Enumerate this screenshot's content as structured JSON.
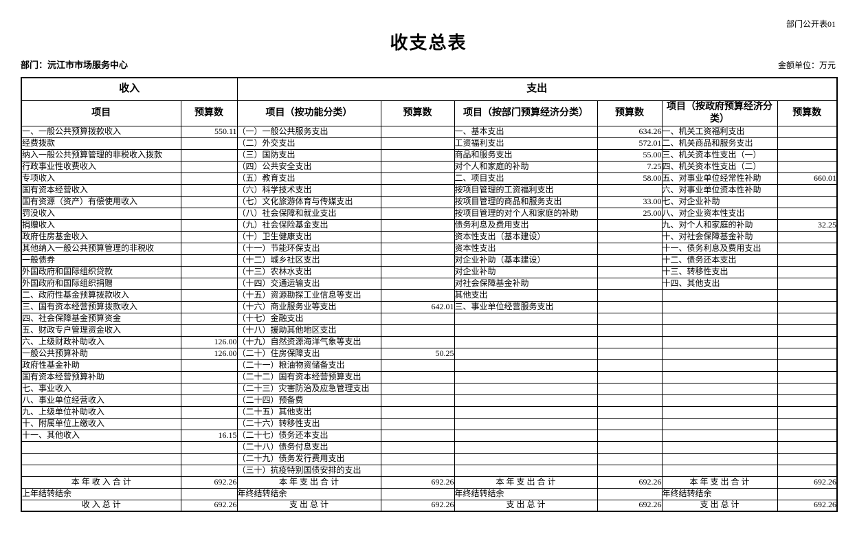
{
  "page": {
    "corner_label": "部门公开表01",
    "title": "收支总表",
    "department_label": "部门：沅江市市场服务中心",
    "unit_label": "金额单位：万元"
  },
  "table": {
    "income_header": "收入",
    "expenditure_header": "支出",
    "column_headers": [
      "项目",
      "预算数",
      "项目（按功能分类）",
      "预算数",
      "项目（按部门预算经济分类）",
      "预算数",
      "项目（按政府预算经济分类）",
      "预算数"
    ],
    "rows": [
      [
        [
          "一、一般公共预算拨款收入",
          0,
          "550.11"
        ],
        [
          "（一）一般公共服务支出",
          0,
          ""
        ],
        [
          "一、基本支出",
          0,
          "634.26"
        ],
        [
          "一、机关工资福利支出",
          0,
          ""
        ]
      ],
      [
        [
          "经费拨款",
          3,
          ""
        ],
        [
          "（二）外交支出",
          0,
          ""
        ],
        [
          "工资福利支出",
          1,
          "572.01"
        ],
        [
          "二、机关商品和服务支出",
          0,
          ""
        ]
      ],
      [
        [
          "纳入一般公共预算管理的非税收入拨款",
          2,
          ""
        ],
        [
          "（三）国防支出",
          0,
          ""
        ],
        [
          "商品和服务支出",
          1,
          "55.00"
        ],
        [
          "三、机关资本性支出（一）",
          0,
          ""
        ]
      ],
      [
        [
          "行政事业性收费收入",
          4,
          ""
        ],
        [
          "（四）公共安全支出",
          0,
          ""
        ],
        [
          "对个人和家庭的补助",
          1,
          "7.25"
        ],
        [
          "四、机关资本性支出（二）",
          0,
          ""
        ]
      ],
      [
        [
          "专项收入",
          4,
          ""
        ],
        [
          "（五）教育支出",
          0,
          ""
        ],
        [
          "二、项目支出",
          0,
          "58.00"
        ],
        [
          "五、对事业单位经常性补助",
          0,
          "660.01"
        ]
      ],
      [
        [
          "国有资本经营收入",
          4,
          ""
        ],
        [
          "（六）科学技术支出",
          0,
          ""
        ],
        [
          "按项目管理的工资福利支出",
          1,
          ""
        ],
        [
          "六、对事业单位资本性补助",
          0,
          ""
        ]
      ],
      [
        [
          "国有资源（资产）有偿使用收入",
          4,
          ""
        ],
        [
          "（七）文化旅游体育与传媒支出",
          0,
          ""
        ],
        [
          "按项目管理的商品和服务支出",
          1,
          "33.00"
        ],
        [
          "七、对企业补助",
          0,
          ""
        ]
      ],
      [
        [
          "罚没收入",
          4,
          ""
        ],
        [
          "（八）社会保障和就业支出",
          0,
          ""
        ],
        [
          "按项目管理的对个人和家庭的补助",
          1,
          "25.00"
        ],
        [
          "八、对企业资本性支出",
          0,
          ""
        ]
      ],
      [
        [
          "捐赠收入",
          4,
          ""
        ],
        [
          "（九）社会保险基金支出",
          0,
          ""
        ],
        [
          "债务利息及费用支出",
          1,
          ""
        ],
        [
          "九、对个人和家庭的补助",
          0,
          "32.25"
        ]
      ],
      [
        [
          "政府住房基金收入",
          4,
          ""
        ],
        [
          "（十）卫生健康支出",
          0,
          ""
        ],
        [
          "资本性支出（基本建设）",
          1,
          ""
        ],
        [
          "十、对社会保障基金补助",
          0,
          ""
        ]
      ],
      [
        [
          "其他纳入一般公共预算管理的非税收",
          4,
          ""
        ],
        [
          "（十一）节能环保支出",
          0,
          ""
        ],
        [
          "资本性支出",
          1,
          ""
        ],
        [
          "十一、债务利息及费用支出",
          0,
          ""
        ]
      ],
      [
        [
          "一般债券",
          3,
          ""
        ],
        [
          "（十二）城乡社区支出",
          0,
          ""
        ],
        [
          "对企业补助（基本建设）",
          1,
          ""
        ],
        [
          "十二、债务还本支出",
          0,
          ""
        ]
      ],
      [
        [
          "外国政府和国际组织贷款",
          1,
          ""
        ],
        [
          "（十三）农林水支出",
          0,
          ""
        ],
        [
          "对企业补助",
          1,
          ""
        ],
        [
          "十三、转移性支出",
          0,
          ""
        ]
      ],
      [
        [
          "外国政府和国际组织捐赠",
          1,
          ""
        ],
        [
          "（十四）交通运输支出",
          0,
          ""
        ],
        [
          "对社会保障基金补助",
          1,
          ""
        ],
        [
          "十四、其他支出",
          0,
          ""
        ]
      ],
      [
        [
          "二、政府性基金预算拨款收入",
          0,
          ""
        ],
        [
          "（十五）资源勘探工业信息等支出",
          0,
          ""
        ],
        [
          "其他支出",
          1,
          ""
        ],
        [
          "",
          0,
          ""
        ]
      ],
      [
        [
          "三、国有资本经营预算拨款收入",
          0,
          ""
        ],
        [
          "（十六）商业服务业等支出",
          0,
          "642.01"
        ],
        [
          "三、事业单位经营服务支出",
          0,
          ""
        ],
        [
          "",
          0,
          ""
        ]
      ],
      [
        [
          "四、社会保障基金预算资金",
          0,
          ""
        ],
        [
          "（十七）金融支出",
          0,
          ""
        ],
        [
          "",
          0,
          ""
        ],
        [
          "",
          0,
          ""
        ]
      ],
      [
        [
          "五、财政专户管理资金收入",
          0,
          ""
        ],
        [
          "（十八）援助其他地区支出",
          0,
          ""
        ],
        [
          "",
          0,
          ""
        ],
        [
          "",
          0,
          ""
        ]
      ],
      [
        [
          "六、上级财政补助收入",
          0,
          "126.00"
        ],
        [
          "（十九）自然资源海洋气象等支出",
          0,
          ""
        ],
        [
          "",
          0,
          ""
        ],
        [
          "",
          0,
          ""
        ]
      ],
      [
        [
          "一般公共预算补助",
          3,
          "126.00"
        ],
        [
          "（二十）住房保障支出",
          0,
          "50.25"
        ],
        [
          "",
          0,
          ""
        ],
        [
          "",
          0,
          ""
        ]
      ],
      [
        [
          "政府性基金补助",
          3,
          ""
        ],
        [
          "（二十一）粮油物资储备支出",
          0,
          ""
        ],
        [
          "",
          0,
          ""
        ],
        [
          "",
          0,
          ""
        ]
      ],
      [
        [
          "国有资本经营预算补助",
          3,
          ""
        ],
        [
          "（二十二）国有资本经营预算支出",
          0,
          ""
        ],
        [
          "",
          0,
          ""
        ],
        [
          "",
          0,
          ""
        ]
      ],
      [
        [
          "七、事业收入",
          0,
          ""
        ],
        [
          "（二十三）灾害防治及应急管理支出",
          0,
          ""
        ],
        [
          "",
          0,
          ""
        ],
        [
          "",
          0,
          ""
        ]
      ],
      [
        [
          "八、事业单位经营收入",
          0,
          ""
        ],
        [
          "（二十四）预备费",
          0,
          ""
        ],
        [
          "",
          0,
          ""
        ],
        [
          "",
          0,
          ""
        ]
      ],
      [
        [
          "九、上级单位补助收入",
          0,
          ""
        ],
        [
          "（二十五）其他支出",
          0,
          ""
        ],
        [
          "",
          0,
          ""
        ],
        [
          "",
          0,
          ""
        ]
      ],
      [
        [
          "十、附属单位上缴收入",
          0,
          ""
        ],
        [
          "（二十六）转移性支出",
          0,
          ""
        ],
        [
          "",
          0,
          ""
        ],
        [
          "",
          0,
          ""
        ]
      ],
      [
        [
          "十一、其他收入",
          0,
          "16.15"
        ],
        [
          "（二十七）债务还本支出",
          0,
          ""
        ],
        [
          "",
          0,
          ""
        ],
        [
          "",
          0,
          ""
        ]
      ],
      [
        [
          "",
          0,
          ""
        ],
        [
          "（二十八）债务付息支出",
          0,
          ""
        ],
        [
          "",
          0,
          ""
        ],
        [
          "",
          0,
          ""
        ]
      ],
      [
        [
          "",
          0,
          ""
        ],
        [
          "（二十九）债务发行费用支出",
          0,
          ""
        ],
        [
          "",
          0,
          ""
        ],
        [
          "",
          0,
          ""
        ]
      ],
      [
        [
          "",
          0,
          ""
        ],
        [
          "（三十）抗疫特别国债安排的支出",
          0,
          ""
        ],
        [
          "",
          0,
          ""
        ],
        [
          "",
          0,
          ""
        ]
      ]
    ],
    "summary_rows": [
      {
        "align": "center",
        "cells": [
          [
            "本 年 收 入 合 计",
            "692.26"
          ],
          [
            "本 年 支 出 合 计",
            "692.26"
          ],
          [
            "本 年 支 出 合 计",
            "692.26"
          ],
          [
            "本 年 支 出 合 计",
            "692.26"
          ]
        ]
      },
      {
        "align": "left",
        "cells": [
          [
            "上年结转结余",
            ""
          ],
          [
            "年终结转结余",
            ""
          ],
          [
            "年终结转结余",
            ""
          ],
          [
            "年终结转结余",
            ""
          ]
        ]
      },
      {
        "align": "center",
        "cells": [
          [
            "收  入  总  计",
            "692.26"
          ],
          [
            "支  出  总  计",
            "692.26"
          ],
          [
            "支  出  总  计",
            "692.26"
          ],
          [
            "支  出  总  计",
            "692.26"
          ]
        ]
      }
    ]
  }
}
